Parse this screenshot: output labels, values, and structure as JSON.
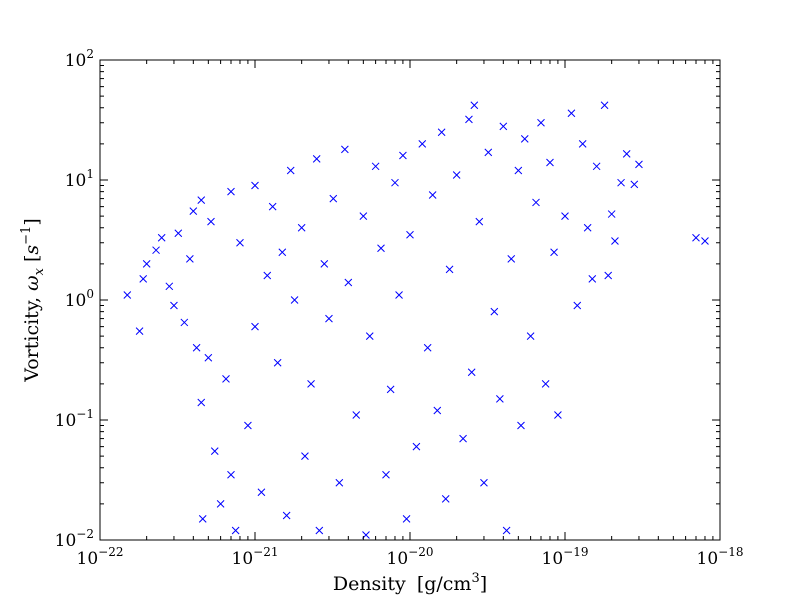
{
  "chart_data": {
    "type": "scatter",
    "title": "",
    "x_scale": "log",
    "y_scale": "log",
    "xlim": [
      1e-22,
      1e-18
    ],
    "ylim": [
      0.01,
      100
    ],
    "grid": false,
    "legend": "none",
    "marker": "x",
    "series": [
      {
        "color": "#0000ff",
        "description": "dense cloud of points; two clusters centred near (2e-21, 2) and (2e-20, 5)",
        "points": [
          [
            1.5e-22,
            1.1
          ],
          [
            1.8e-22,
            0.55
          ],
          [
            1.9e-22,
            1.5
          ],
          [
            2e-22,
            2.0
          ],
          [
            2.3e-22,
            2.6
          ],
          [
            2.5e-22,
            3.3
          ],
          [
            2.8e-22,
            1.3
          ],
          [
            3e-22,
            0.9
          ],
          [
            3.2e-22,
            3.6
          ],
          [
            3.5e-22,
            0.65
          ],
          [
            3.8e-22,
            2.2
          ],
          [
            4e-22,
            5.5
          ],
          [
            4.2e-22,
            0.4
          ],
          [
            4.5e-22,
            6.8
          ],
          [
            4.5e-22,
            0.14
          ],
          [
            4.6e-22,
            0.015
          ],
          [
            5e-22,
            0.33
          ],
          [
            5.2e-22,
            4.5
          ],
          [
            5.5e-22,
            0.055
          ],
          [
            6e-22,
            0.02
          ],
          [
            6.5e-22,
            0.22
          ],
          [
            7e-22,
            8.0
          ],
          [
            7e-22,
            0.035
          ],
          [
            7.5e-22,
            0.012
          ],
          [
            8e-22,
            3.0
          ],
          [
            9e-22,
            0.09
          ],
          [
            1e-21,
            9.0
          ],
          [
            1e-21,
            0.6
          ],
          [
            1.1e-21,
            0.025
          ],
          [
            1.2e-21,
            1.6
          ],
          [
            1.3e-21,
            6.0
          ],
          [
            1.4e-21,
            0.3
          ],
          [
            1.5e-21,
            2.5
          ],
          [
            1.6e-21,
            0.016
          ],
          [
            1.7e-21,
            12.0
          ],
          [
            1.8e-21,
            1.0
          ],
          [
            2e-21,
            4.0
          ],
          [
            2.1e-21,
            0.05
          ],
          [
            2.3e-21,
            0.2
          ],
          [
            2.5e-21,
            15.0
          ],
          [
            2.6e-21,
            0.012
          ],
          [
            2.8e-21,
            2.0
          ],
          [
            3e-21,
            0.7
          ],
          [
            3.2e-21,
            7.0
          ],
          [
            3.5e-21,
            0.03
          ],
          [
            3.8e-21,
            18.0
          ],
          [
            4e-21,
            1.4
          ],
          [
            4.5e-21,
            0.11
          ],
          [
            5e-21,
            5.0
          ],
          [
            5.2e-21,
            0.011
          ],
          [
            5.5e-21,
            0.5
          ],
          [
            6e-21,
            13.0
          ],
          [
            6.5e-21,
            2.7
          ],
          [
            7e-21,
            0.035
          ],
          [
            7.5e-21,
            0.18
          ],
          [
            8e-21,
            9.5
          ],
          [
            8.5e-21,
            1.1
          ],
          [
            9e-21,
            16.0
          ],
          [
            9.5e-21,
            0.015
          ],
          [
            1e-20,
            3.5
          ],
          [
            1.1e-20,
            0.06
          ],
          [
            1.2e-20,
            20.0
          ],
          [
            1.3e-20,
            0.4
          ],
          [
            1.4e-20,
            7.5
          ],
          [
            1.5e-20,
            0.12
          ],
          [
            1.6e-20,
            25.0
          ],
          [
            1.7e-20,
            0.022
          ],
          [
            1.8e-20,
            1.8
          ],
          [
            2e-20,
            11.0
          ],
          [
            2.2e-20,
            0.07
          ],
          [
            2.4e-20,
            32.0
          ],
          [
            2.5e-20,
            0.25
          ],
          [
            2.6e-20,
            42.0
          ],
          [
            2.8e-20,
            4.5
          ],
          [
            3e-20,
            0.03
          ],
          [
            3.2e-20,
            17.0
          ],
          [
            3.5e-20,
            0.8
          ],
          [
            3.8e-20,
            0.15
          ],
          [
            4e-20,
            28.0
          ],
          [
            4.2e-20,
            0.012
          ],
          [
            4.5e-20,
            2.2
          ],
          [
            5e-20,
            12.0
          ],
          [
            5.2e-20,
            0.09
          ],
          [
            5.5e-20,
            22.0
          ],
          [
            6e-20,
            0.5
          ],
          [
            6.5e-20,
            6.5
          ],
          [
            7e-20,
            30.0
          ],
          [
            7.5e-20,
            0.2
          ],
          [
            8e-20,
            14.0
          ],
          [
            8.5e-20,
            2.5
          ],
          [
            9e-20,
            0.11
          ],
          [
            1e-19,
            5.0
          ],
          [
            1.1e-19,
            36.0
          ],
          [
            1.2e-19,
            0.9
          ],
          [
            1.3e-19,
            20.0
          ],
          [
            1.4e-19,
            4.0
          ],
          [
            1.5e-19,
            1.5
          ],
          [
            1.6e-19,
            13.0
          ],
          [
            1.8e-19,
            42.0
          ],
          [
            1.9e-19,
            1.6
          ],
          [
            2e-19,
            5.2
          ],
          [
            2.1e-19,
            3.1
          ],
          [
            2.3e-19,
            9.5
          ],
          [
            2.5e-19,
            16.5
          ],
          [
            2.8e-19,
            9.2
          ],
          [
            3e-19,
            13.5
          ],
          [
            7e-19,
            3.3
          ],
          [
            8e-19,
            3.1
          ]
        ]
      }
    ],
    "xaxis": {
      "label_text": "Density",
      "label_unit": "[g/cm",
      "label_unit_exp": "3",
      "label_unit_close": "]",
      "tick_base": "10",
      "ticks": [
        {
          "value": 1e-22,
          "exp": "−22"
        },
        {
          "value": 1e-21,
          "exp": "−21"
        },
        {
          "value": 1e-20,
          "exp": "−20"
        },
        {
          "value": 1e-19,
          "exp": "−19"
        },
        {
          "value": 1e-18,
          "exp": "−18"
        }
      ]
    },
    "yaxis": {
      "label_text": "Vorticity, ",
      "label_symbol": "ω",
      "label_sub": "x",
      "label_unit_open": " [",
      "label_unit": "s",
      "label_unit_exp": "−1",
      "label_unit_close": "]",
      "tick_base": "10",
      "ticks": [
        {
          "value": 0.01,
          "exp": "−2"
        },
        {
          "value": 0.1,
          "exp": "−1"
        },
        {
          "value": 1,
          "exp": "0"
        },
        {
          "value": 10,
          "exp": "1"
        },
        {
          "value": 100,
          "exp": "2"
        }
      ]
    }
  }
}
